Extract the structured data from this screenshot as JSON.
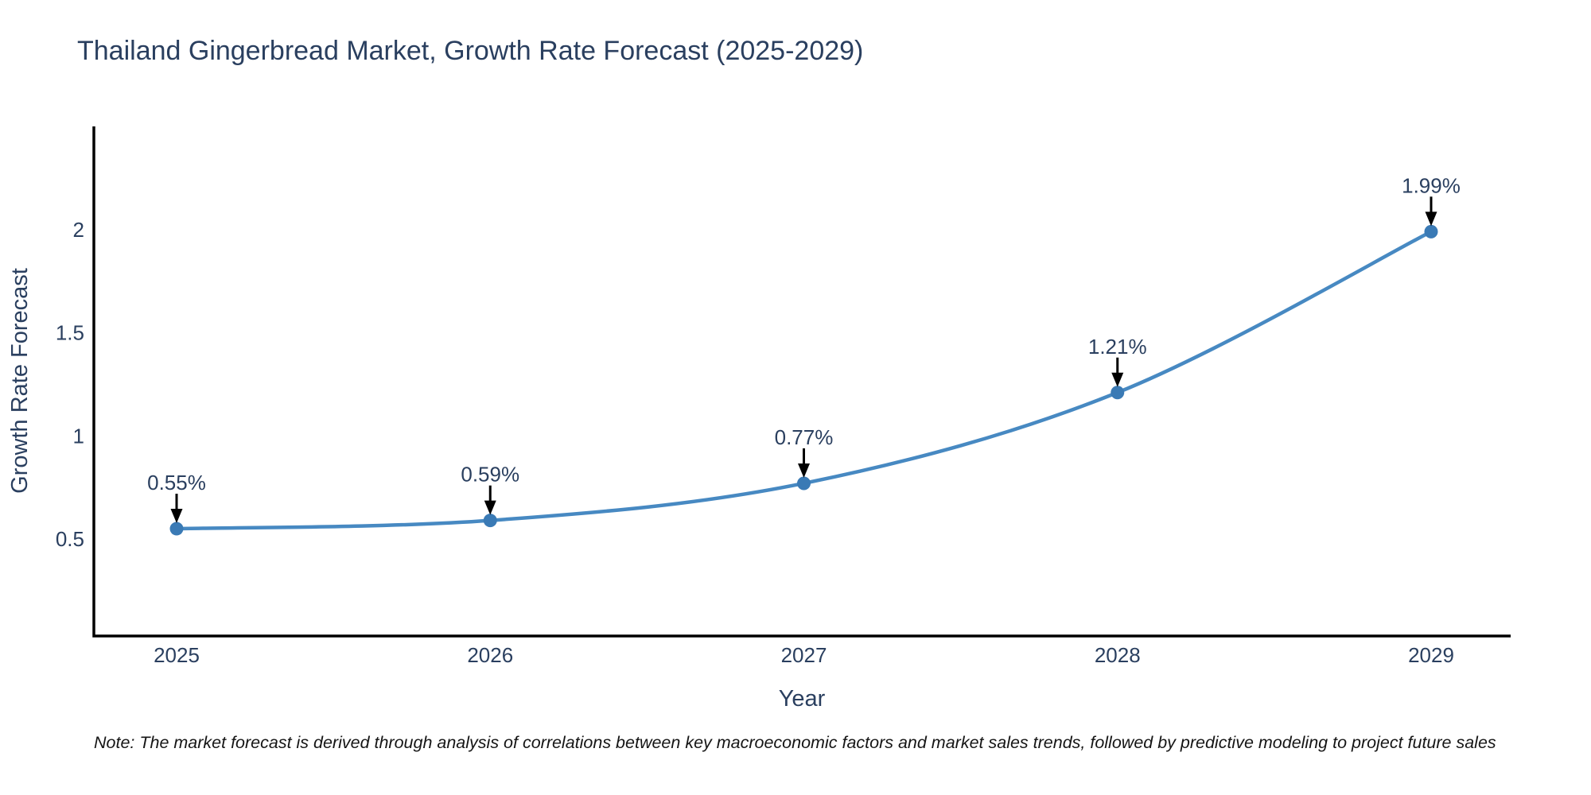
{
  "title": {
    "text": "Thailand Gingerbread Market, Growth Rate Forecast (2025-2029)"
  },
  "note": {
    "text": "Note: The market forecast is derived through analysis of correlations between key macroeconomic factors and market sales trends, followed by predictive modeling to project future sales"
  },
  "chart_data": {
    "type": "line",
    "title": "Thailand Gingerbread Market, Growth Rate Forecast (2025-2029)",
    "x": [
      "2025",
      "2026",
      "2027",
      "2028",
      "2029"
    ],
    "series": [
      {
        "name": "Growth Rate Forecast",
        "values": [
          0.55,
          0.59,
          0.77,
          1.21,
          1.99
        ]
      }
    ],
    "point_labels": [
      "0.55%",
      "0.59%",
      "0.77%",
      "1.21%",
      "1.99%"
    ],
    "xlabel": "Year",
    "ylabel": "Growth Rate Forecast",
    "yticks": [
      0.5,
      1,
      1.5,
      2
    ],
    "ylim": [
      0.03,
      2.5
    ],
    "grid": false,
    "legend_position": "none",
    "line_shape": "spline",
    "annotations_have_arrows": true
  },
  "colors": {
    "line": "#4789c2",
    "marker": "#3a7ab5",
    "axis": "#000000",
    "chart_text": "#2a3f5f",
    "note_text": "#151515",
    "arrow": "#000000",
    "background": "#ffffff"
  }
}
